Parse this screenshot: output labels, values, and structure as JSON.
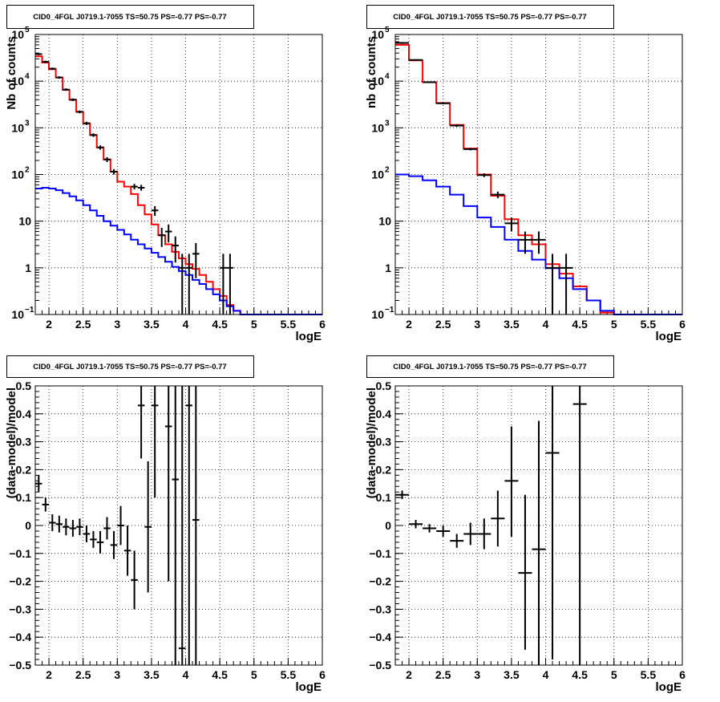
{
  "colors": {
    "data": "#000000",
    "total_model": "#ff0000",
    "background_model": "#0000ff",
    "grid": "#000000"
  },
  "chart_data": [
    {
      "type": "line",
      "title": "CID0_4FGL J0719.1-7055 TS=50.75 PS=-0.77 PS=-0.77",
      "xlabel": "logE",
      "ylabel": "Nb of counts",
      "xlim": [
        1.8,
        6
      ],
      "ylim": [
        0.1,
        100000
      ],
      "yscale": "log",
      "grid": true,
      "xticks": [
        "2",
        "2.5",
        "3",
        "3.5",
        "4",
        "4.5",
        "5",
        "5.5",
        "6"
      ],
      "yticks": [
        "10-1",
        "1",
        "10",
        "102",
        "103",
        "104",
        "105"
      ],
      "bin_width": 0.1,
      "x": [
        1.85,
        1.95,
        2.05,
        2.15,
        2.25,
        2.35,
        2.45,
        2.55,
        2.65,
        2.75,
        2.85,
        2.95,
        3.05,
        3.15,
        3.25,
        3.35,
        3.45,
        3.55,
        3.65,
        3.75,
        3.85,
        3.95,
        4.05,
        4.15,
        4.25,
        4.35,
        4.45,
        4.55,
        4.65,
        4.75,
        4.85,
        4.95,
        5.05,
        5.15,
        5.25,
        5.35,
        5.45,
        5.55,
        5.65,
        5.75,
        5.85,
        5.95
      ],
      "series": [
        {
          "name": "",
          "role": "total_model",
          "values": [
            34000,
            25000,
            18000,
            12000,
            6500,
            4000,
            2200,
            1250,
            700,
            380,
            210,
            115,
            70,
            55,
            38,
            22,
            14,
            8.5,
            5,
            3.2,
            2.2,
            1.6,
            1.2,
            0.95,
            0.7,
            0.5,
            0.35,
            0.25,
            0.16,
            0.12,
            0.1,
            0.1,
            0.1,
            0.1,
            0.1,
            0.1,
            0.1,
            0.1,
            0.1,
            0.1,
            0.1,
            0.1
          ]
        },
        {
          "name": "",
          "role": "background_model",
          "values": [
            50,
            52,
            50,
            46,
            40,
            34,
            28,
            22,
            17,
            13,
            10,
            8,
            6.5,
            5.2,
            4,
            3.2,
            2.6,
            2.1,
            1.7,
            1.35,
            1.05,
            0.85,
            0.7,
            0.55,
            0.45,
            0.35,
            0.27,
            0.2,
            0.15,
            0.12,
            0.1,
            0.1,
            0.1,
            0.1,
            0.1,
            0.1,
            0.1,
            0.1,
            0.1,
            0.1,
            0.1,
            0.1
          ]
        },
        {
          "name": "",
          "role": "data",
          "points": [
            {
              "x": 1.85,
              "y": 38000,
              "lo": 36000,
              "hi": 40000
            },
            {
              "x": 1.95,
              "y": 26000,
              "lo": 24500,
              "hi": 27500
            },
            {
              "x": 2.05,
              "y": 18500,
              "lo": 17500,
              "hi": 19500
            },
            {
              "x": 2.15,
              "y": 12000,
              "lo": 11300,
              "hi": 12700
            },
            {
              "x": 2.25,
              "y": 6600,
              "lo": 6200,
              "hi": 7000
            },
            {
              "x": 2.35,
              "y": 4000,
              "lo": 3750,
              "hi": 4250
            },
            {
              "x": 2.45,
              "y": 2200,
              "lo": 2050,
              "hi": 2350
            },
            {
              "x": 2.55,
              "y": 1250,
              "lo": 1150,
              "hi": 1350
            },
            {
              "x": 2.65,
              "y": 700,
              "lo": 640,
              "hi": 760
            },
            {
              "x": 2.75,
              "y": 380,
              "lo": 340,
              "hi": 420
            },
            {
              "x": 2.85,
              "y": 210,
              "lo": 185,
              "hi": 235
            },
            {
              "x": 2.95,
              "y": 115,
              "lo": 100,
              "hi": 130
            },
            {
              "x": 3.25,
              "y": 55,
              "lo": 48,
              "hi": 63
            },
            {
              "x": 3.35,
              "y": 52,
              "lo": 45,
              "hi": 60
            },
            {
              "x": 3.55,
              "y": 17,
              "lo": 13,
              "hi": 21
            },
            {
              "x": 3.65,
              "y": 5,
              "lo": 2.8,
              "hi": 7.2
            },
            {
              "x": 3.75,
              "y": 6,
              "lo": 3.5,
              "hi": 8.5
            },
            {
              "x": 3.85,
              "y": 3,
              "lo": 1.3,
              "hi": 4.7
            },
            {
              "x": 3.95,
              "y": 1,
              "lo": 0.1,
              "hi": 2
            },
            {
              "x": 4.05,
              "y": 1,
              "lo": 0.1,
              "hi": 2
            },
            {
              "x": 4.15,
              "y": 2,
              "lo": 0.6,
              "hi": 3.4
            },
            {
              "x": 4.55,
              "y": 1,
              "lo": 0.1,
              "hi": 2
            },
            {
              "x": 4.65,
              "y": 1,
              "lo": 0.1,
              "hi": 2
            }
          ]
        }
      ]
    },
    {
      "type": "line",
      "title": "CID0_4FGL J0719.1-7055 TS=50.75 PS=-0.77 PS=-0.77",
      "xlabel": "logE",
      "ylabel": "nb of counts",
      "xlim": [
        1.8,
        6
      ],
      "ylim": [
        0.1,
        100000
      ],
      "yscale": "log",
      "grid": true,
      "xticks": [
        "2",
        "2.5",
        "3",
        "3.5",
        "4",
        "4.5",
        "5",
        "5.5",
        "6"
      ],
      "yticks": [
        "10-1",
        "1",
        "10",
        "102",
        "103",
        "104",
        "105"
      ],
      "bin_width": 0.2,
      "x": [
        1.9,
        2.1,
        2.3,
        2.5,
        2.7,
        2.9,
        3.1,
        3.3,
        3.5,
        3.7,
        3.9,
        4.1,
        4.3,
        4.5,
        4.7,
        4.9,
        5.1,
        5.3,
        5.5,
        5.7,
        5.9
      ],
      "series": [
        {
          "name": "",
          "role": "total_model",
          "values": [
            60000,
            28000,
            9500,
            3400,
            1150,
            360,
            100,
            35,
            11,
            5,
            3.2,
            1.2,
            0.75,
            0.4,
            0.2,
            0.11,
            0.1,
            0.1,
            0.1,
            0.1,
            0.1
          ]
        },
        {
          "name": "",
          "role": "background_model",
          "values": [
            100,
            92,
            75,
            55,
            37,
            21,
            12,
            7.5,
            4,
            2.3,
            1.5,
            0.98,
            0.6,
            0.35,
            0.2,
            0.12,
            0.1,
            0.1,
            0.1,
            0.1,
            0.1
          ]
        },
        {
          "name": "",
          "role": "data",
          "points": [
            {
              "x": 1.9,
              "y": 66000,
              "lo": 63000,
              "hi": 69000
            },
            {
              "x": 2.1,
              "y": 28500,
              "lo": 27500,
              "hi": 29500
            },
            {
              "x": 2.3,
              "y": 9500,
              "lo": 9100,
              "hi": 9900
            },
            {
              "x": 2.5,
              "y": 3350,
              "lo": 3200,
              "hi": 3500
            },
            {
              "x": 2.7,
              "y": 1120,
              "lo": 1050,
              "hi": 1190
            },
            {
              "x": 2.9,
              "y": 350,
              "lo": 330,
              "hi": 370
            },
            {
              "x": 3.1,
              "y": 97,
              "lo": 88,
              "hi": 106
            },
            {
              "x": 3.3,
              "y": 37,
              "lo": 31,
              "hi": 43
            },
            {
              "x": 3.5,
              "y": 9,
              "lo": 6,
              "hi": 12
            },
            {
              "x": 3.7,
              "y": 4,
              "lo": 2,
              "hi": 6
            },
            {
              "x": 3.9,
              "y": 4,
              "lo": 2,
              "hi": 6
            },
            {
              "x": 4.1,
              "y": 1,
              "lo": 0.1,
              "hi": 2
            },
            {
              "x": 4.3,
              "y": 1,
              "lo": 0.1,
              "hi": 2
            }
          ]
        }
      ]
    },
    {
      "type": "scatter",
      "title": "CID0_4FGL J0719.1-7055 TS=50.75 PS=-0.77 PS=-0.77",
      "xlabel": "logE",
      "ylabel": "(data-model)/model",
      "xlim": [
        1.8,
        6
      ],
      "ylim": [
        -0.5,
        0.5
      ],
      "grid": true,
      "xticks": [
        "2",
        "2.5",
        "3",
        "3.5",
        "4",
        "4.5",
        "5",
        "5.5",
        "6"
      ],
      "yticks": [
        "-0.5",
        "-0.4",
        "-0.3",
        "-0.2",
        "-0.1",
        "0",
        "0.1",
        "0.2",
        "0.3",
        "0.4",
        "0.5"
      ],
      "bin_width": 0.1,
      "points": [
        {
          "x": 1.85,
          "y": 0.15,
          "lo": 0.12,
          "hi": 0.18
        },
        {
          "x": 1.95,
          "y": 0.075,
          "lo": 0.05,
          "hi": 0.1
        },
        {
          "x": 2.05,
          "y": 0.01,
          "lo": -0.02,
          "hi": 0.04
        },
        {
          "x": 2.15,
          "y": 0.005,
          "lo": -0.025,
          "hi": 0.035
        },
        {
          "x": 2.25,
          "y": -0.005,
          "lo": -0.035,
          "hi": 0.025
        },
        {
          "x": 2.35,
          "y": -0.01,
          "lo": -0.04,
          "hi": 0.02
        },
        {
          "x": 2.45,
          "y": -0.005,
          "lo": -0.035,
          "hi": 0.025
        },
        {
          "x": 2.55,
          "y": -0.03,
          "lo": -0.06,
          "hi": 0
        },
        {
          "x": 2.65,
          "y": -0.05,
          "lo": -0.08,
          "hi": -0.02
        },
        {
          "x": 2.75,
          "y": -0.06,
          "lo": -0.1,
          "hi": -0.02
        },
        {
          "x": 2.85,
          "y": -0.01,
          "lo": -0.05,
          "hi": 0.03
        },
        {
          "x": 2.95,
          "y": -0.07,
          "lo": -0.12,
          "hi": -0.02
        },
        {
          "x": 3.05,
          "y": 0,
          "lo": -0.07,
          "hi": 0.07
        },
        {
          "x": 3.15,
          "y": -0.09,
          "lo": -0.18,
          "hi": 0
        },
        {
          "x": 3.25,
          "y": -0.195,
          "lo": -0.3,
          "hi": -0.09
        },
        {
          "x": 3.35,
          "y": 0.43,
          "lo": 0.24,
          "hi": 0.5
        },
        {
          "x": 3.45,
          "y": -0.005,
          "lo": -0.24,
          "hi": 0.23
        },
        {
          "x": 3.55,
          "y": 0.43,
          "lo": 0.1,
          "hi": 0.5
        },
        {
          "x": 3.75,
          "y": 0.355,
          "lo": -0.2,
          "hi": 0.5
        },
        {
          "x": 3.85,
          "y": 0.165,
          "lo": -0.5,
          "hi": 0.5
        },
        {
          "x": 3.95,
          "y": -0.44,
          "lo": -0.5,
          "hi": 0.5
        },
        {
          "x": 4.05,
          "y": 0.43,
          "lo": -0.5,
          "hi": 0.5
        },
        {
          "x": 4.15,
          "y": 0.02,
          "lo": -0.5,
          "hi": 0.5
        }
      ]
    },
    {
      "type": "scatter",
      "title": "CID0_4FGL J0719.1-7055 TS=50.75 PS=-0.77 PS=-0.77",
      "xlabel": "logE",
      "ylabel": "(data-model)/model",
      "xlim": [
        1.8,
        6
      ],
      "ylim": [
        -0.5,
        0.5
      ],
      "grid": true,
      "xticks": [
        "2",
        "2.5",
        "3",
        "3.5",
        "4",
        "4.5",
        "5",
        "5.5",
        "6"
      ],
      "yticks": [
        "-0.5",
        "-0.4",
        "-0.3",
        "-0.2",
        "-0.1",
        "0",
        "0.1",
        "0.2",
        "0.3",
        "0.4",
        "0.5"
      ],
      "bin_width": 0.2,
      "points": [
        {
          "x": 1.9,
          "y": 0.11,
          "lo": 0.095,
          "hi": 0.125
        },
        {
          "x": 2.1,
          "y": 0.005,
          "lo": -0.01,
          "hi": 0.02
        },
        {
          "x": 2.3,
          "y": -0.01,
          "lo": -0.025,
          "hi": 0.005
        },
        {
          "x": 2.5,
          "y": -0.02,
          "lo": -0.04,
          "hi": 0
        },
        {
          "x": 2.7,
          "y": -0.055,
          "lo": -0.08,
          "hi": -0.03
        },
        {
          "x": 2.9,
          "y": -0.03,
          "lo": -0.07,
          "hi": 0.01
        },
        {
          "x": 3.1,
          "y": -0.03,
          "lo": -0.085,
          "hi": 0.025
        },
        {
          "x": 3.3,
          "y": 0.025,
          "lo": -0.075,
          "hi": 0.125
        },
        {
          "x": 3.5,
          "y": 0.16,
          "lo": -0.04,
          "hi": 0.355
        },
        {
          "x": 3.7,
          "y": -0.17,
          "lo": -0.445,
          "hi": 0.11
        },
        {
          "x": 3.9,
          "y": -0.085,
          "lo": -0.5,
          "hi": 0.375
        },
        {
          "x": 4.1,
          "y": 0.26,
          "lo": -0.48,
          "hi": 0.5
        },
        {
          "x": 4.5,
          "y": 0.435,
          "lo": -0.5,
          "hi": 0.5
        }
      ]
    }
  ]
}
